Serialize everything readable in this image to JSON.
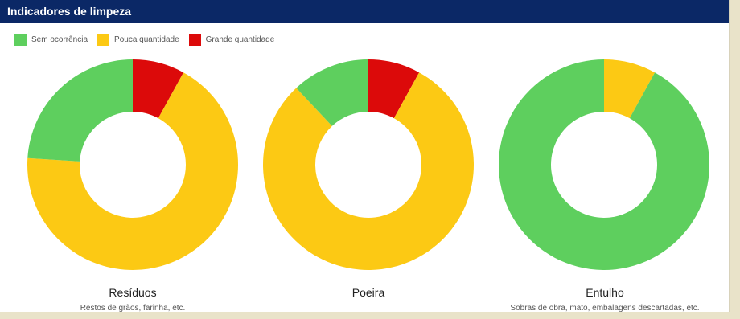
{
  "header": {
    "title": "Indicadores de limpeza"
  },
  "legend": [
    {
      "label": "Sem ocorrência",
      "color": "#5ecf5e"
    },
    {
      "label": "Pouca quantidade",
      "color": "#fcc914"
    },
    {
      "label": "Grande quantidade",
      "color": "#dc0a0a"
    }
  ],
  "chart_data": [
    {
      "type": "pie",
      "title": "Resíduos",
      "subtitle": "Restos de grãos, farinha, etc.",
      "categories": [
        "Sem ocorrência",
        "Pouca quantidade",
        "Grande quantidade"
      ],
      "values": [
        24,
        68,
        8
      ]
    },
    {
      "type": "pie",
      "title": "Poeira",
      "subtitle": "",
      "categories": [
        "Sem ocorrência",
        "Pouca quantidade",
        "Grande quantidade"
      ],
      "values": [
        12,
        80,
        8
      ]
    },
    {
      "type": "pie",
      "title": "Entulho",
      "subtitle": "Sobras de obra, mato, embalagens descartadas, etc.",
      "categories": [
        "Sem ocorrência",
        "Pouca quantidade",
        "Grande quantidade"
      ],
      "values": [
        92,
        8,
        0
      ]
    }
  ]
}
